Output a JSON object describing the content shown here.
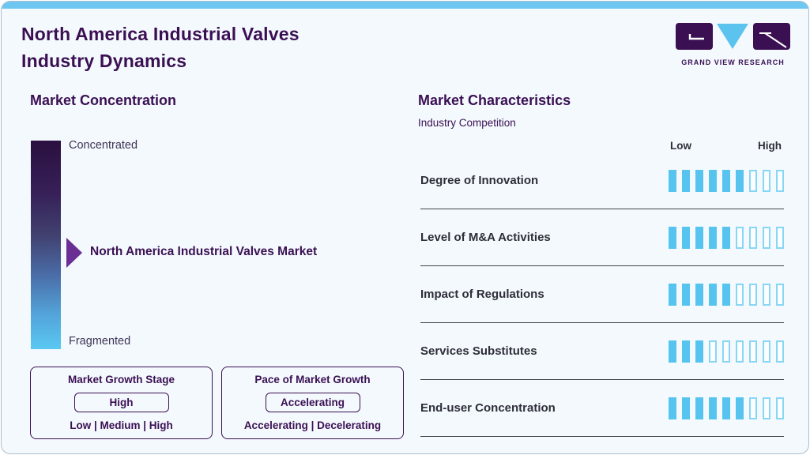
{
  "page": {
    "title_line1": "North America Industrial Valves",
    "title_line2": "Industry Dynamics"
  },
  "logo": {
    "text": "GRAND VIEW RESEARCH"
  },
  "market_concentration": {
    "heading": "Market Concentration",
    "scale_top": "Concentrated",
    "scale_bottom": "Fragmented",
    "marker_label": "North America Industrial Valves Market",
    "marker_position": "middle"
  },
  "growth_stage": {
    "title": "Market Growth Stage",
    "value": "High",
    "options": "Low | Medium | High"
  },
  "pace_of_growth": {
    "title": "Pace of Market Growth",
    "value": "Accelerating",
    "options": "Accelerating | Decelerating"
  },
  "market_characteristics": {
    "heading": "Market Characteristics",
    "subheading": "Industry Competition",
    "scale_low": "Low",
    "scale_high": "High",
    "rows": [
      {
        "label": "Degree of Innovation",
        "filled": 6,
        "total": 9
      },
      {
        "label": "Level of M&A Activities",
        "filled": 5,
        "total": 9
      },
      {
        "label": "Impact of Regulations",
        "filled": 5,
        "total": 9
      },
      {
        "label": "Services Substitutes",
        "filled": 3,
        "total": 9
      },
      {
        "label": "End-user Concentration",
        "filled": 6,
        "total": 9
      }
    ]
  },
  "chart_data": {
    "type": "bar",
    "title": "Industry Competition",
    "categories": [
      "Degree of Innovation",
      "Level of M&A Activities",
      "Impact of Regulations",
      "Services Substitutes",
      "End-user Concentration"
    ],
    "values": [
      6,
      5,
      5,
      3,
      6
    ],
    "scale": {
      "segments": 9,
      "min_label": "Low",
      "max_label": "High"
    }
  },
  "colors": {
    "accent_blue": "#57c4f0",
    "accent_blue_light": "#88d6f5",
    "top_strip": "#6ec7f0",
    "brand_purple": "#3b1053",
    "arrow_purple": "#6b2e94",
    "gradient_top": "#2a1040",
    "gradient_bottom": "#5ac8f2",
    "background": "#f3f9fd",
    "row_text": "#2e2e38"
  }
}
